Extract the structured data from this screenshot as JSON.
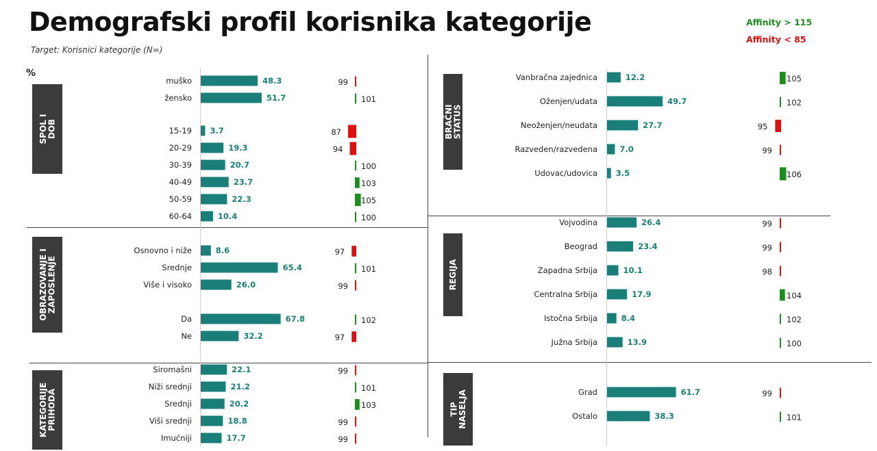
{
  "title": "Demografski profil korisnika kategorije",
  "subtitle": "Target: Korisnici kategorije (N=)",
  "legend": {
    "high": "Affinity > 115",
    "low": "Affinity < 85",
    "high_color": "#1e8c1e",
    "low_color": "#e01010"
  },
  "percent_label": "%",
  "colors": {
    "bar": "#1a7f78",
    "above": "#1e8c1e",
    "below": "#e01010",
    "category_bg": "#3b3b3b"
  },
  "chart_data": {
    "type": "bar",
    "value_unit": "%",
    "panels": [
      {
        "id": "left",
        "sections": [
          {
            "name": "SPOL I DOB",
            "rows": [
              {
                "label": "muško",
                "value": 48.3,
                "affinity": 99
              },
              {
                "label": "žensko",
                "value": 51.7,
                "affinity": 101
              },
              {
                "label": "15-19",
                "value": 3.7,
                "affinity": 87
              },
              {
                "label": "20-29",
                "value": 19.3,
                "affinity": 94
              },
              {
                "label": "30-39",
                "value": 20.7,
                "affinity": 100
              },
              {
                "label": "40-49",
                "value": 23.7,
                "affinity": 103
              },
              {
                "label": "50-59",
                "value": 22.3,
                "affinity": 105
              },
              {
                "label": "60-64",
                "value": 10.4,
                "affinity": 100
              }
            ]
          },
          {
            "name": "OBRAZOVANJE I ZAPOSLENJE",
            "rows": [
              {
                "label": "Osnovno i niže",
                "value": 8.6,
                "affinity": 97
              },
              {
                "label": "Srednje",
                "value": 65.4,
                "affinity": 101
              },
              {
                "label": "Više i visoko",
                "value": 26.0,
                "affinity": 99
              },
              {
                "label": "Da",
                "value": 67.8,
                "affinity": 102
              },
              {
                "label": "Ne",
                "value": 32.2,
                "affinity": 97
              }
            ]
          },
          {
            "name": "KATEGORIJE PRIHODA",
            "rows": [
              {
                "label": "Siromašni",
                "value": 22.1,
                "affinity": 99
              },
              {
                "label": "Niži srednji",
                "value": 21.2,
                "affinity": 101
              },
              {
                "label": "Srednji",
                "value": 20.2,
                "affinity": 103
              },
              {
                "label": "Viši srednji",
                "value": 18.8,
                "affinity": 99
              },
              {
                "label": "Imućniji",
                "value": 17.7,
                "affinity": 99
              }
            ]
          }
        ]
      },
      {
        "id": "right",
        "sections": [
          {
            "name": "BRAČNI STATUS",
            "rows": [
              {
                "label": "Vanbračna zajednica",
                "value": 12.2,
                "affinity": 105
              },
              {
                "label": "Oženjen/udata",
                "value": 49.7,
                "affinity": 102
              },
              {
                "label": "Neoženjen/neudata",
                "value": 27.7,
                "affinity": 95
              },
              {
                "label": "Razveden/razvedena",
                "value": 7.0,
                "affinity": 99
              },
              {
                "label": "Udovac/udovica",
                "value": 3.5,
                "affinity": 106
              }
            ]
          },
          {
            "name": "REGIJA",
            "rows": [
              {
                "label": "Vojvodina",
                "value": 26.4,
                "affinity": 99
              },
              {
                "label": "Beograd",
                "value": 23.4,
                "affinity": 99
              },
              {
                "label": "Zapadna Srbija",
                "value": 10.1,
                "affinity": 98
              },
              {
                "label": "Centralna Srbija",
                "value": 17.9,
                "affinity": 104
              },
              {
                "label": "Istočna Srbija",
                "value": 8.4,
                "affinity": 102
              },
              {
                "label": "Južna Srbija",
                "value": 13.9,
                "affinity": 100
              }
            ]
          },
          {
            "name": "TIP NASELJA",
            "rows": [
              {
                "label": "Grad",
                "value": 61.7,
                "affinity": 99
              },
              {
                "label": "Ostalo",
                "value": 38.3,
                "affinity": 101
              }
            ]
          }
        ]
      }
    ]
  }
}
